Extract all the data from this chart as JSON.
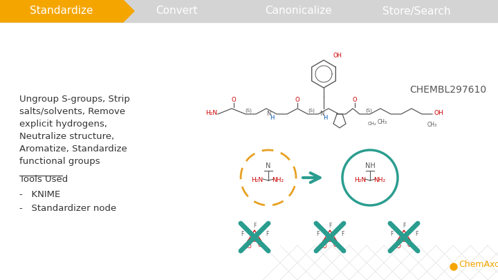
{
  "bg_color": "#f0f0f0",
  "header_bar_color": "#d4d4d4",
  "header_active_color": "#f5a500",
  "header_items": [
    "Standardize",
    "Convert",
    "Canonicalize",
    "Store/Search"
  ],
  "header_text_color": "#ffffff",
  "body_bg": "#ffffff",
  "title_text": "CHEMBL297610",
  "title_color": "#555555",
  "body_text_lines": [
    "Ungroup S-groups, Strip",
    "salts/solvents, Remove",
    "explicit hydrogens,",
    "Neutralize structure,",
    "Aromatize, Standardize",
    "functional groups"
  ],
  "tools_label": "Tools Used",
  "bullet_items": [
    "KNIME",
    "Standardizer node"
  ],
  "text_color": "#333333",
  "chemaxon_color": "#f5a500",
  "chemaxon_label": "ChemAxon",
  "arrow_color": "#2a9d8f",
  "dashed_circle_color": "#e8a020",
  "solid_circle_color": "#2a9d8f",
  "cross_color": "#2a9d8f",
  "mol_line_color": "#555555",
  "red_color": "#cc0000",
  "blue_color": "#0055aa"
}
